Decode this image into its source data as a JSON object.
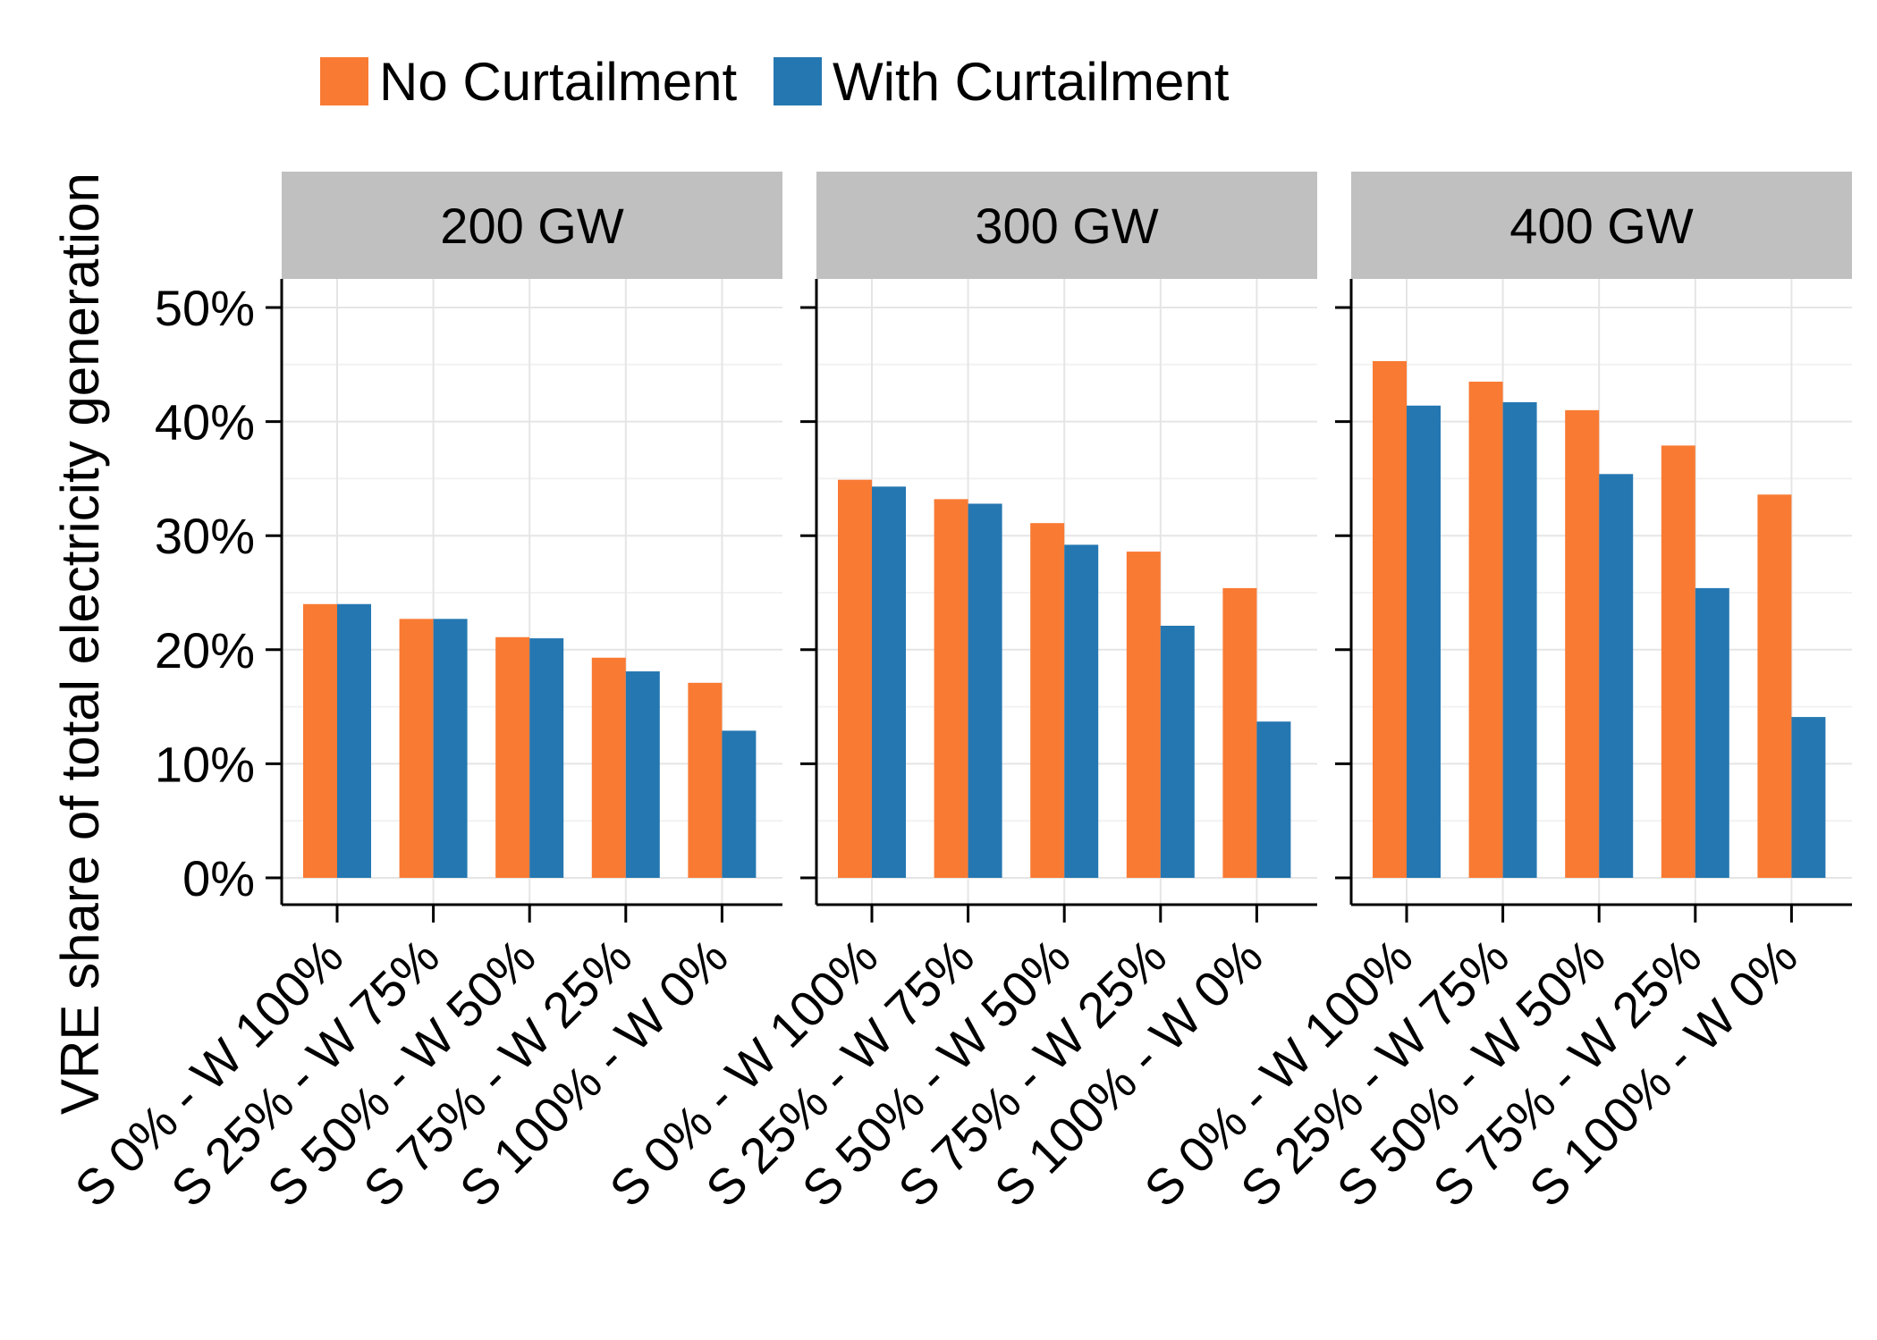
{
  "chart_data": {
    "type": "bar",
    "ylabel": "VRE share of total electricity generation",
    "ylim": [
      0,
      50
    ],
    "yticks": [
      "0%",
      "10%",
      "20%",
      "30%",
      "40%",
      "50%"
    ],
    "categories": [
      "S 0% - W 100%",
      "S 25% - W 75%",
      "S 50% - W 50%",
      "S 75% - W 25%",
      "S 100% - W 0%"
    ],
    "legend": {
      "placement": "top",
      "entries": [
        {
          "name": "No Curtailment",
          "color": "#F97A33"
        },
        {
          "name": "With Curtailment",
          "color": "#2577B1"
        }
      ]
    },
    "grid": true,
    "facets": [
      {
        "label": "200 GW",
        "series": [
          {
            "name": "No Curtailment",
            "values": [
              24.0,
              22.7,
              21.1,
              19.3,
              17.1
            ]
          },
          {
            "name": "With Curtailment",
            "values": [
              24.0,
              22.7,
              21.0,
              18.1,
              12.9
            ]
          }
        ]
      },
      {
        "label": "300 GW",
        "series": [
          {
            "name": "No Curtailment",
            "values": [
              34.9,
              33.2,
              31.1,
              28.6,
              25.4
            ]
          },
          {
            "name": "With Curtailment",
            "values": [
              34.3,
              32.8,
              29.2,
              22.1,
              13.7
            ]
          }
        ]
      },
      {
        "label": "400 GW",
        "series": [
          {
            "name": "No Curtailment",
            "values": [
              45.3,
              43.5,
              41.0,
              37.9,
              33.6
            ]
          },
          {
            "name": "With Curtailment",
            "values": [
              41.4,
              41.7,
              35.4,
              25.4,
              14.1
            ]
          }
        ]
      }
    ]
  }
}
